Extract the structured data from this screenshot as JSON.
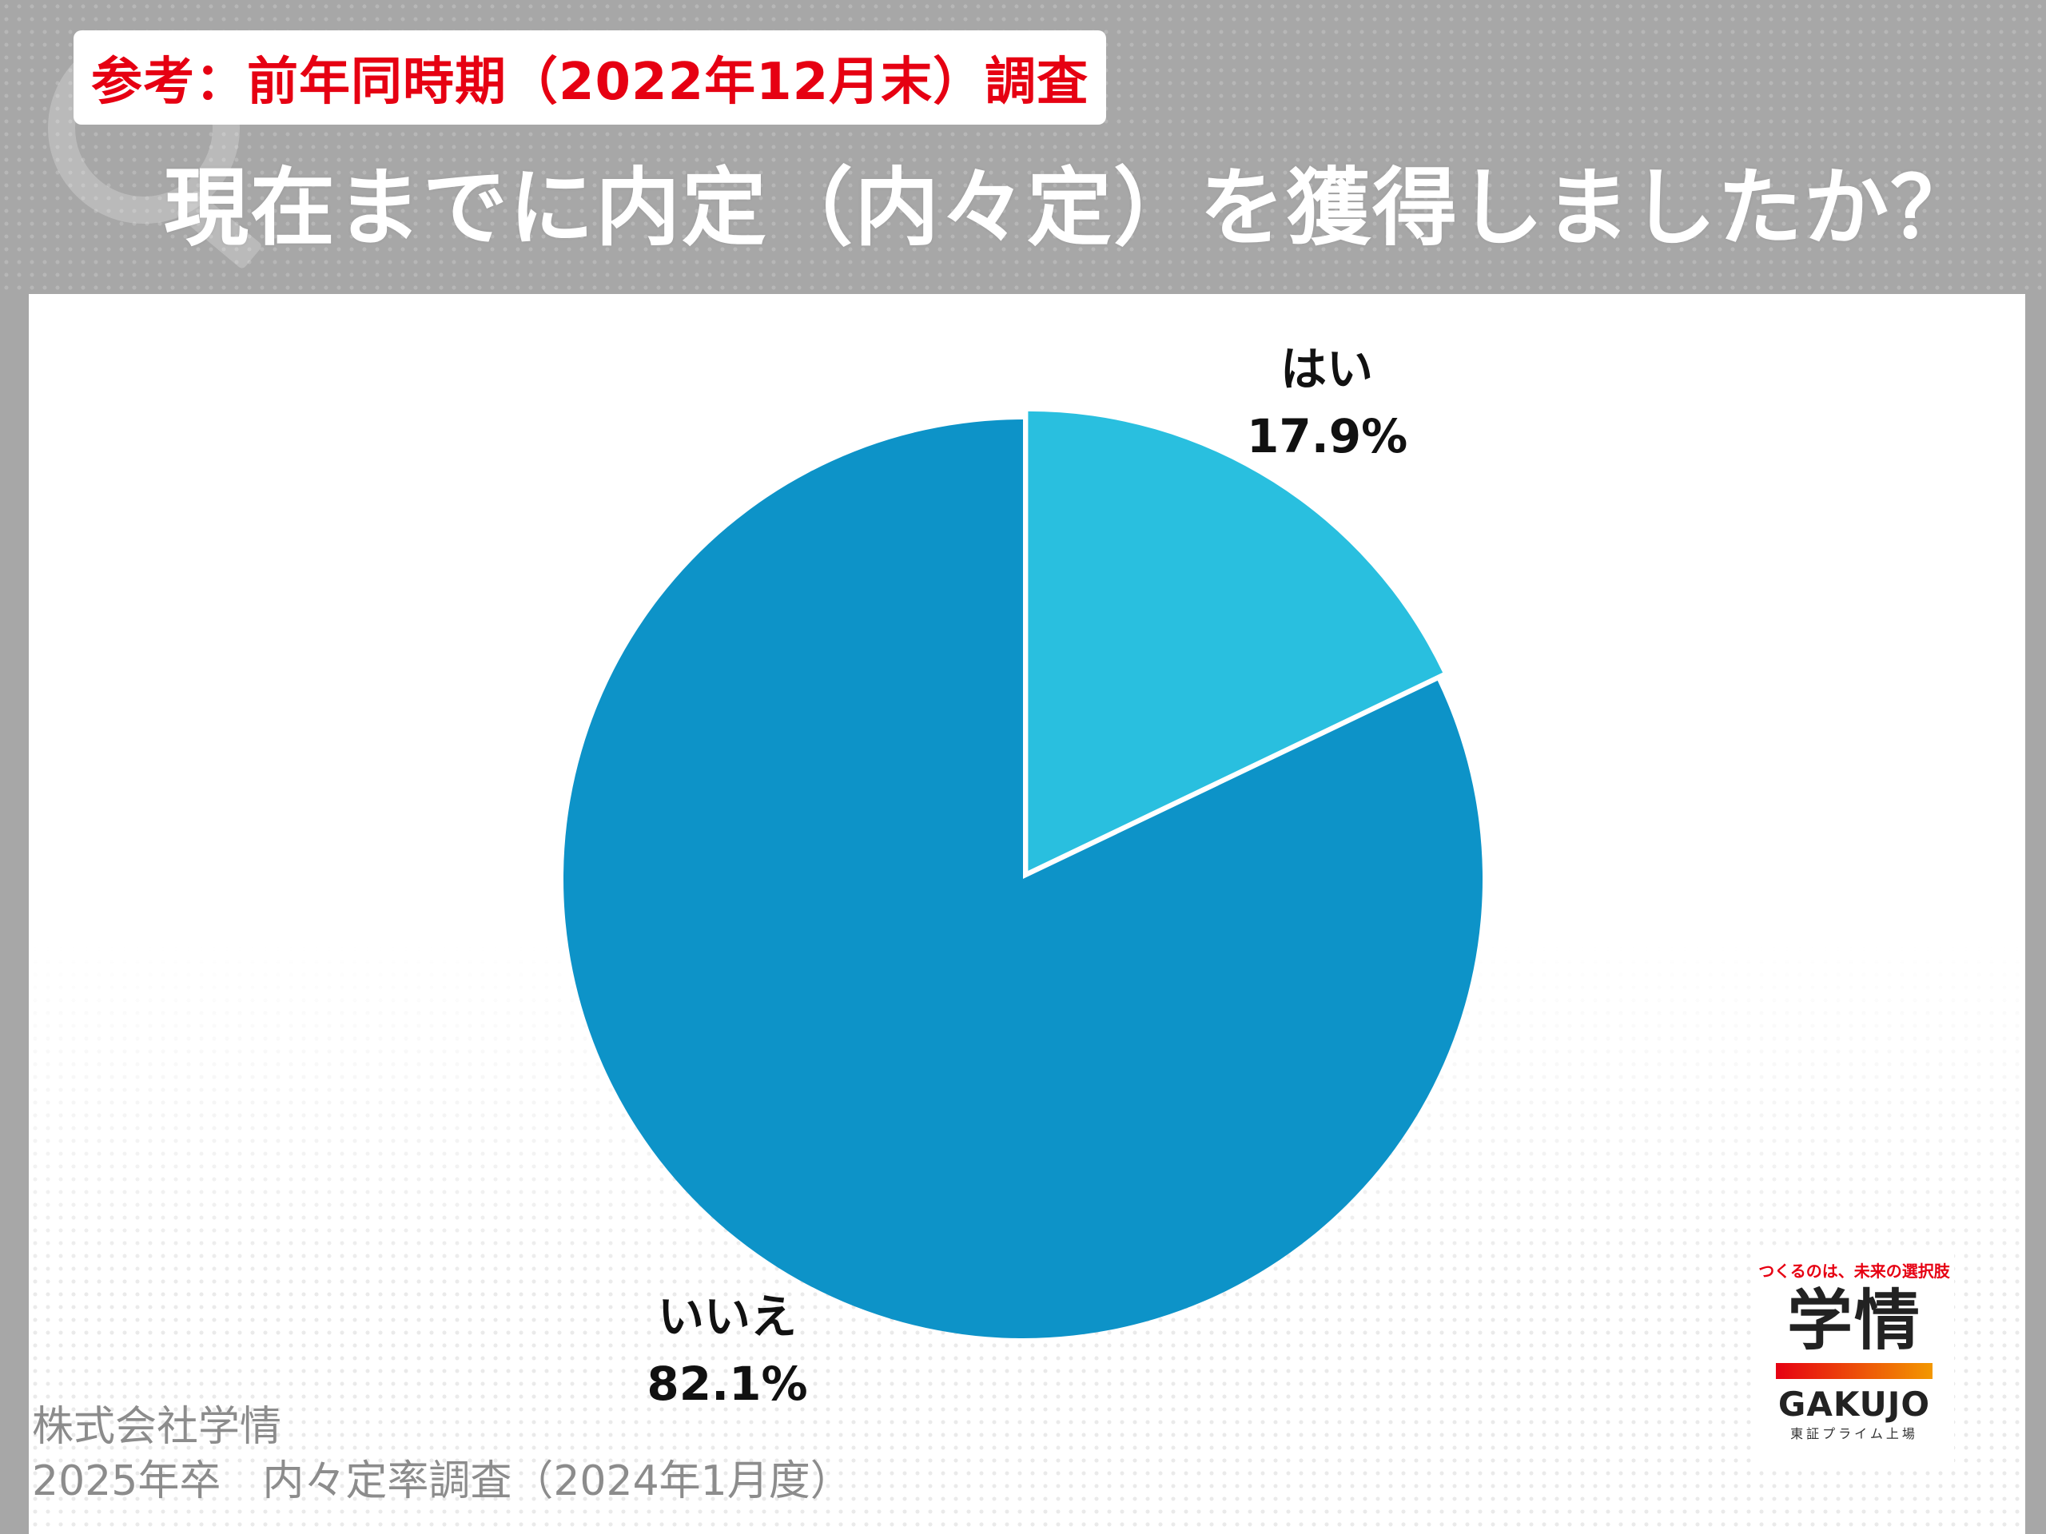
{
  "header": {
    "reference_label": "参考：前年同時期（2022年12月末）調査",
    "question": "現在までに内定（内々定）を獲得しましたか？"
  },
  "chart_data": {
    "type": "pie",
    "categories": [
      "はい",
      "いいえ"
    ],
    "values": [
      17.9,
      82.1
    ],
    "unit": "%",
    "data_labels": [
      "17.9%",
      "82.1%"
    ],
    "colors": [
      "#29bfdf",
      "#0d93c8"
    ],
    "exploded": "はい",
    "start_angle": "12 o'clock, clockwise",
    "legend": "none"
  },
  "source": {
    "company": "株式会社学情",
    "survey": "2025年卒　内々定率調査（2024年1月度）"
  },
  "logo": {
    "tagline": "つくるのは、未来の選択肢",
    "name": "学情",
    "roman": "GAKUJO",
    "listing": "東証プライム上場"
  },
  "colors": {
    "header_gray": "#a7a7a7",
    "accent_red": "#e60012"
  }
}
